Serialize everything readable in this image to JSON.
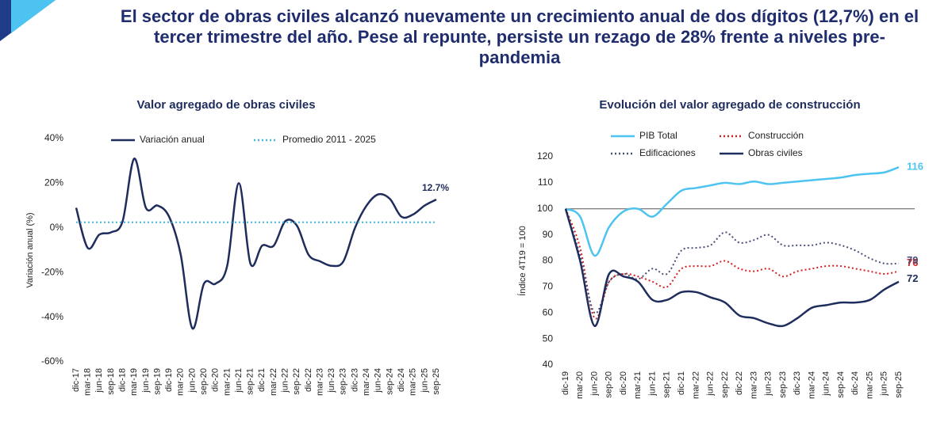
{
  "title": "El sector de obras civiles alcanzó nuevamente un crecimiento anual de dos dígitos (12,7%) en el tercer trimestre del año. Pese al repunte, persiste un rezago de 28% frente a niveles pre-pandemia",
  "chart_data": [
    {
      "type": "line",
      "title": "Valor agregado de obras civiles",
      "y_label": "Variación anual (%)",
      "legend": "top",
      "categories": [
        "dic-17",
        "mar-18",
        "jun-18",
        "sep-18",
        "dic-18",
        "mar-19",
        "jun-19",
        "sep-19",
        "dic-19",
        "mar-20",
        "jun-20",
        "sep-20",
        "dic-20",
        "mar-21",
        "jun-21",
        "sep-21",
        "dic-21",
        "mar-22",
        "jun-22",
        "sep-22",
        "dic-22",
        "mar-23",
        "jun-23",
        "sep-23",
        "dic-23",
        "mar-24",
        "jun-24",
        "sep-24",
        "dic-24",
        "mar-25",
        "jun-25",
        "sep-25"
      ],
      "series": [
        {
          "name": "Variación anual",
          "color": "#1f2d5c",
          "style": "solid",
          "values": [
            9,
            -9,
            -3,
            -2,
            3,
            31,
            9,
            10,
            5,
            -12,
            -45,
            -25,
            -25,
            -17,
            20,
            -16,
            -8,
            -8,
            3,
            1,
            -12,
            -15,
            -17,
            -15,
            0,
            10,
            15,
            13,
            5,
            6,
            10,
            12.7
          ],
          "value_labels": [
            null,
            null,
            null,
            null,
            null,
            null,
            null,
            null,
            null,
            null,
            null,
            null,
            null,
            null,
            null,
            null,
            null,
            null,
            null,
            null,
            null,
            null,
            null,
            null,
            null,
            null,
            null,
            null,
            null,
            null,
            null,
            "12.7%"
          ]
        },
        {
          "name": "Promedio 2011 - 2025",
          "color": "#3fb6e0",
          "style": "dotted",
          "values": [
            2.5,
            2.5,
            2.5,
            2.5,
            2.5,
            2.5,
            2.5,
            2.5,
            2.5,
            2.5,
            2.5,
            2.5,
            2.5,
            2.5,
            2.5,
            2.5,
            2.5,
            2.5,
            2.5,
            2.5,
            2.5,
            2.5,
            2.5,
            2.5,
            2.5,
            2.5,
            2.5,
            2.5,
            2.5,
            2.5,
            2.5,
            2.5
          ]
        }
      ],
      "ylim": [
        -60,
        40
      ],
      "yticks": [
        {
          "value": 40,
          "label": "40%"
        },
        {
          "value": 20,
          "label": "20%"
        },
        {
          "value": 0,
          "label": "0%"
        },
        {
          "value": -20,
          "label": "-20%"
        },
        {
          "value": -40,
          "label": "-40%"
        },
        {
          "value": -60,
          "label": "-60%"
        }
      ]
    },
    {
      "type": "line",
      "title": "Evolución del valor agregado de construcción",
      "y_label": "Índice 4T19 = 100",
      "legend": "top",
      "hline": 100,
      "categories": [
        "dic-19",
        "mar-20",
        "jun-20",
        "sep-20",
        "dic-20",
        "mar-21",
        "jun-21",
        "sep-21",
        "dic-21",
        "mar-22",
        "jun-22",
        "sep-22",
        "dic-22",
        "mar-23",
        "jun-23",
        "sep-23",
        "dic-23",
        "mar-24",
        "jun-24",
        "sep-24",
        "dic-24",
        "mar-25",
        "jun-25",
        "sep-25"
      ],
      "series": [
        {
          "name": "PIB Total",
          "color": "#4dc3f0",
          "style": "solid",
          "values": [
            100,
            97,
            82,
            93,
            99,
            100,
            97,
            102,
            107,
            108,
            109,
            110,
            109.5,
            110.5,
            109.5,
            110,
            110.5,
            111,
            111.5,
            112,
            113,
            113.5,
            114,
            116
          ]
        },
        {
          "name": "Construcción",
          "color": "#d62020",
          "style": "dotted",
          "values": [
            100,
            85,
            58,
            72,
            75,
            74,
            72,
            70,
            77,
            78,
            78,
            80,
            77,
            76,
            77,
            74,
            76,
            77,
            78,
            78,
            77,
            76,
            75,
            76
          ]
        },
        {
          "name": "Edificaciones",
          "color": "#4a4f7a",
          "style": "dotted",
          "values": [
            100,
            82,
            60,
            72,
            75,
            73,
            77,
            75,
            84,
            85,
            86,
            91,
            87,
            88,
            90,
            86,
            86,
            86,
            87,
            86,
            84,
            81,
            79,
            79
          ]
        },
        {
          "name": "Obras civiles",
          "color": "#1f2d5c",
          "style": "solid",
          "values": [
            100,
            80,
            55,
            75,
            74,
            72,
            65,
            65,
            68,
            68,
            66,
            64,
            59,
            58,
            56,
            55,
            58,
            62,
            63,
            64,
            64,
            65,
            69,
            72
          ]
        }
      ],
      "ylim": [
        40,
        120
      ],
      "yticks": [
        40,
        50,
        60,
        70,
        80,
        90,
        100,
        110,
        120
      ]
    }
  ]
}
